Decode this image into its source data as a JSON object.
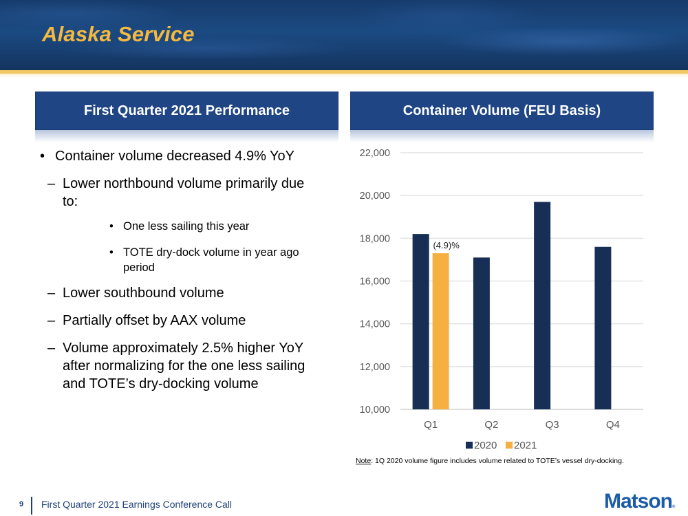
{
  "slide": {
    "title": "Alaska Service",
    "page_number": "9",
    "footer_text": "First Quarter 2021 Earnings Conference Call",
    "logo_text": "Matson",
    "logo_mark": "®",
    "colors": {
      "title_gold": "#f6b83f",
      "header_blue": "#1f4585",
      "bar_2020": "#172f55",
      "bar_2021": "#f5b041",
      "footer_blue": "#1f3f77",
      "logo_blue": "#1b5ba8"
    }
  },
  "left_panel": {
    "header": "First Quarter 2021 Performance",
    "bullets": [
      {
        "level": 1,
        "marker": "•",
        "text": "Container volume decreased 4.9% YoY"
      },
      {
        "level": 2,
        "marker": "–",
        "text": "Lower northbound volume primarily due to:"
      },
      {
        "level": 3,
        "marker": "•",
        "text": "One less sailing this year"
      },
      {
        "level": 3,
        "marker": "•",
        "text": "TOTE dry-dock volume in year ago period"
      },
      {
        "level": 2,
        "marker": "–",
        "text": "Lower southbound volume"
      },
      {
        "level": 2,
        "marker": "–",
        "text": "Partially offset by AAX volume"
      },
      {
        "level": 2,
        "marker": "–",
        "text": "Volume approximately 2.5% higher YoY after normalizing for the one less sailing and TOTE’s dry-docking volume"
      }
    ]
  },
  "right_panel": {
    "header": "Container Volume (FEU Basis)",
    "note_label": "Note",
    "note_text": ": 1Q 2020 volume figure includes volume related to TOTE’s vessel dry-docking."
  },
  "chart_data": {
    "type": "bar",
    "title": "Container Volume (FEU Basis)",
    "xlabel": "",
    "ylabel": "",
    "categories": [
      "Q1",
      "Q2",
      "Q3",
      "Q4"
    ],
    "series": [
      {
        "name": "2020",
        "values": [
          18200,
          17100,
          19700,
          17600
        ],
        "color": "#172f55"
      },
      {
        "name": "2021",
        "values": [
          17300,
          null,
          null,
          null
        ],
        "color": "#f5b041"
      }
    ],
    "ylim": [
      10000,
      22000
    ],
    "yticks": [
      10000,
      12000,
      14000,
      16000,
      18000,
      20000,
      22000
    ],
    "ytick_labels": [
      "10,000",
      "12,000",
      "14,000",
      "16,000",
      "18,000",
      "20,000",
      "22,000"
    ],
    "grid": true,
    "legend": "bottom",
    "annotations": [
      {
        "category": "Q1",
        "series": "2021",
        "text": "(4.9)%"
      }
    ]
  }
}
